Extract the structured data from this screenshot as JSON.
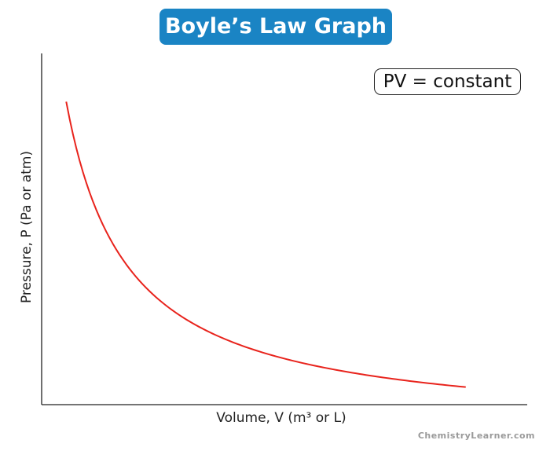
{
  "chart_data": {
    "type": "line",
    "title": "Boyle’s Law Graph",
    "annotation": "PV = constant",
    "xlabel": "Volume, V (m³ or L)",
    "ylabel": "Pressure, P (Pa or atm)",
    "grid": false,
    "series": [
      {
        "relation": "P = k / V",
        "color": "#e8231c",
        "x": [
          1.0,
          1.5,
          2.0,
          2.5,
          3.0,
          3.5,
          4.0,
          4.5,
          5.0,
          5.5,
          6.0,
          6.5,
          7.0,
          7.5
        ],
        "y": [
          7.5,
          5.0,
          3.75,
          3.0,
          2.5,
          2.14,
          1.875,
          1.667,
          1.5,
          1.364,
          1.25,
          1.154,
          1.071,
          1.0
        ]
      }
    ],
    "xlim": [
      0.6,
      8.5
    ],
    "ylim": [
      0.6,
      8.6
    ],
    "axis_color": "#222222"
  },
  "watermark": "ChemistryLearner.com"
}
